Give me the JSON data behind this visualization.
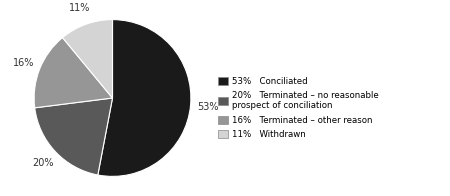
{
  "slices": [
    53,
    20,
    16,
    11
  ],
  "colors": [
    "#1a1a1a",
    "#595959",
    "#969696",
    "#d4d4d4"
  ],
  "pct_labels": [
    "53%",
    "20%",
    "16%",
    "11%"
  ],
  "legend_pcts": [
    "53%",
    "20%",
    "16%",
    "11%"
  ],
  "legend_labels": [
    "Conciliated",
    "Terminated – no reasonable\nprospect of conciliation",
    "Terminated – other reason",
    "Withdrawn"
  ],
  "startangle": 90,
  "background_color": "#ffffff"
}
